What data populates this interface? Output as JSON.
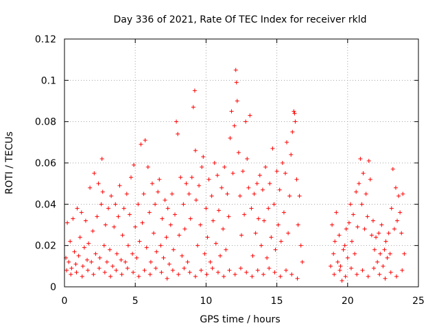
{
  "chart_data": {
    "type": "scatter",
    "title": "Day 336 of 2021, Rate Of TEC Index for receiver rkld",
    "xlabel": "GPS time / hours",
    "ylabel": "ROTI / TECUs",
    "xlim": [
      0,
      25
    ],
    "ylim": [
      0,
      0.12
    ],
    "xticks": [
      0,
      5,
      10,
      15,
      20,
      25
    ],
    "yticks": [
      0,
      0.02,
      0.04,
      0.06,
      0.08,
      0.1,
      0.12
    ],
    "xtick_labels": [
      "0",
      "5",
      "10",
      "15",
      "20",
      "25"
    ],
    "ytick_labels": [
      "0",
      "0.02",
      "0.04",
      "0.06",
      "0.08",
      "0.1",
      "0.12"
    ],
    "grid": true,
    "marker": "plus",
    "color": "#ff0000",
    "data_gap_hours": [
      16.8,
      18.8
    ],
    "series": [
      {
        "points": [
          [
            0.1,
            0.014
          ],
          [
            0.2,
            0.031
          ],
          [
            0.3,
            0.012
          ],
          [
            0.4,
            0.022
          ],
          [
            0.5,
            0.009
          ],
          [
            0.6,
            0.033
          ],
          [
            0.7,
            0.017
          ],
          [
            0.8,
            0.011
          ],
          [
            0.9,
            0.038
          ],
          [
            1.0,
            0.015
          ],
          [
            1.1,
            0.024
          ],
          [
            1.2,
            0.036
          ],
          [
            1.3,
            0.01
          ],
          [
            1.4,
            0.019
          ],
          [
            1.5,
            0.032
          ],
          [
            1.6,
            0.013
          ],
          [
            1.7,
            0.021
          ],
          [
            1.8,
            0.048
          ],
          [
            1.9,
            0.012
          ],
          [
            2.0,
            0.027
          ],
          [
            2.1,
            0.055
          ],
          [
            2.2,
            0.016
          ],
          [
            2.3,
            0.034
          ],
          [
            2.4,
            0.05
          ],
          [
            2.5,
            0.014
          ],
          [
            2.6,
            0.04
          ],
          [
            2.65,
            0.062
          ],
          [
            2.7,
            0.046
          ],
          [
            2.8,
            0.02
          ],
          [
            2.9,
            0.03
          ],
          [
            3.0,
            0.012
          ],
          [
            3.1,
            0.038
          ],
          [
            3.2,
            0.018
          ],
          [
            3.3,
            0.044
          ],
          [
            3.4,
            0.01
          ],
          [
            3.5,
            0.029
          ],
          [
            3.6,
            0.04
          ],
          [
            3.7,
            0.016
          ],
          [
            3.8,
            0.034
          ],
          [
            3.9,
            0.049
          ],
          [
            4.0,
            0.013
          ],
          [
            4.1,
            0.025
          ],
          [
            4.2,
            0.038
          ],
          [
            4.3,
            0.012
          ],
          [
            4.4,
            0.045
          ],
          [
            4.5,
            0.02
          ],
          [
            4.6,
            0.035
          ],
          [
            4.7,
            0.053
          ],
          [
            4.8,
            0.016
          ],
          [
            4.9,
            0.059
          ],
          [
            5.0,
            0.029
          ],
          [
            5.1,
            0.014
          ],
          [
            5.2,
            0.04
          ],
          [
            5.3,
            0.022
          ],
          [
            5.4,
            0.069
          ],
          [
            5.5,
            0.031
          ],
          [
            5.6,
            0.045
          ],
          [
            5.7,
            0.071
          ],
          [
            5.8,
            0.019
          ],
          [
            5.9,
            0.058
          ],
          [
            6.0,
            0.036
          ],
          [
            6.1,
            0.012
          ],
          [
            6.2,
            0.05
          ],
          [
            6.3,
            0.026
          ],
          [
            6.4,
            0.04
          ],
          [
            6.5,
            0.017
          ],
          [
            6.6,
            0.046
          ],
          [
            6.7,
            0.052
          ],
          [
            6.8,
            0.02
          ],
          [
            6.9,
            0.033
          ],
          [
            7.0,
            0.014
          ],
          [
            7.1,
            0.042
          ],
          [
            7.2,
            0.024
          ],
          [
            7.3,
            0.038
          ],
          [
            7.4,
            0.011
          ],
          [
            7.5,
            0.03
          ],
          [
            7.6,
            0.045
          ],
          [
            7.7,
            0.018
          ],
          [
            7.8,
            0.035
          ],
          [
            7.9,
            0.08
          ],
          [
            8.0,
            0.074
          ],
          [
            8.1,
            0.025
          ],
          [
            8.2,
            0.053
          ],
          [
            8.3,
            0.015
          ],
          [
            8.4,
            0.04
          ],
          [
            8.5,
            0.028
          ],
          [
            8.6,
            0.05
          ],
          [
            8.7,
            0.012
          ],
          [
            8.8,
            0.045
          ],
          [
            8.9,
            0.033
          ],
          [
            9.0,
            0.053
          ],
          [
            9.1,
            0.087
          ],
          [
            9.2,
            0.095
          ],
          [
            9.25,
            0.066
          ],
          [
            9.3,
            0.042
          ],
          [
            9.4,
            0.02
          ],
          [
            9.5,
            0.049
          ],
          [
            9.6,
            0.03
          ],
          [
            9.7,
            0.058
          ],
          [
            9.8,
            0.063
          ],
          [
            9.9,
            0.016
          ],
          [
            10.0,
            0.038
          ],
          [
            10.1,
            0.024
          ],
          [
            10.2,
            0.052
          ],
          [
            10.3,
            0.012
          ],
          [
            10.4,
            0.044
          ],
          [
            10.5,
            0.032
          ],
          [
            10.6,
            0.06
          ],
          [
            10.7,
            0.021
          ],
          [
            10.8,
            0.054
          ],
          [
            10.9,
            0.037
          ],
          [
            11.0,
            0.015
          ],
          [
            11.1,
            0.048
          ],
          [
            11.2,
            0.028
          ],
          [
            11.3,
            0.058
          ],
          [
            11.4,
            0.018
          ],
          [
            11.5,
            0.045
          ],
          [
            11.6,
            0.034
          ],
          [
            11.7,
            0.072
          ],
          [
            11.8,
            0.085
          ],
          [
            11.9,
            0.055
          ],
          [
            12.0,
            0.078
          ],
          [
            12.1,
            0.105
          ],
          [
            12.15,
            0.099
          ],
          [
            12.2,
            0.09
          ],
          [
            12.3,
            0.065
          ],
          [
            12.4,
            0.044
          ],
          [
            12.5,
            0.025
          ],
          [
            12.6,
            0.056
          ],
          [
            12.7,
            0.035
          ],
          [
            12.8,
            0.08
          ],
          [
            12.9,
            0.062
          ],
          [
            13.0,
            0.048
          ],
          [
            13.1,
            0.083
          ],
          [
            13.2,
            0.038
          ],
          [
            13.3,
            0.015
          ],
          [
            13.4,
            0.045
          ],
          [
            13.5,
            0.026
          ],
          [
            13.6,
            0.05
          ],
          [
            13.7,
            0.033
          ],
          [
            13.8,
            0.054
          ],
          [
            13.9,
            0.02
          ],
          [
            14.0,
            0.047
          ],
          [
            14.1,
            0.032
          ],
          [
            14.2,
            0.058
          ],
          [
            14.3,
            0.014
          ],
          [
            14.4,
            0.038
          ],
          [
            14.5,
            0.05
          ],
          [
            14.6,
            0.024
          ],
          [
            14.7,
            0.067
          ],
          [
            14.8,
            0.04
          ],
          [
            14.9,
            0.018
          ],
          [
            15.0,
            0.056
          ],
          [
            15.1,
            0.03
          ],
          [
            15.2,
            0.047
          ],
          [
            15.3,
            0.022
          ],
          [
            15.4,
            0.06
          ],
          [
            15.5,
            0.036
          ],
          [
            15.6,
            0.055
          ],
          [
            15.7,
            0.07
          ],
          [
            15.8,
            0.026
          ],
          [
            15.9,
            0.044
          ],
          [
            16.0,
            0.064
          ],
          [
            16.1,
            0.075
          ],
          [
            16.2,
            0.085
          ],
          [
            16.25,
            0.084
          ],
          [
            16.3,
            0.08
          ],
          [
            16.4,
            0.052
          ],
          [
            16.5,
            0.03
          ],
          [
            16.6,
            0.044
          ],
          [
            16.7,
            0.02
          ],
          [
            16.8,
            0.012
          ],
          [
            0.15,
            0.008
          ],
          [
            0.45,
            0.006
          ],
          [
            0.85,
            0.007
          ],
          [
            1.25,
            0.005
          ],
          [
            1.65,
            0.008
          ],
          [
            2.05,
            0.006
          ],
          [
            2.45,
            0.009
          ],
          [
            2.85,
            0.007
          ],
          [
            3.25,
            0.005
          ],
          [
            3.65,
            0.008
          ],
          [
            4.05,
            0.006
          ],
          [
            4.45,
            0.009
          ],
          [
            4.85,
            0.007
          ],
          [
            5.25,
            0.005
          ],
          [
            5.65,
            0.008
          ],
          [
            6.05,
            0.006
          ],
          [
            6.45,
            0.009
          ],
          [
            6.85,
            0.007
          ],
          [
            7.25,
            0.004
          ],
          [
            7.65,
            0.008
          ],
          [
            8.05,
            0.006
          ],
          [
            8.45,
            0.009
          ],
          [
            8.85,
            0.007
          ],
          [
            9.25,
            0.005
          ],
          [
            9.65,
            0.008
          ],
          [
            10.05,
            0.006
          ],
          [
            10.45,
            0.009
          ],
          [
            10.85,
            0.007
          ],
          [
            11.25,
            0.005
          ],
          [
            11.65,
            0.008
          ],
          [
            12.05,
            0.006
          ],
          [
            12.45,
            0.009
          ],
          [
            12.85,
            0.007
          ],
          [
            13.25,
            0.005
          ],
          [
            13.65,
            0.008
          ],
          [
            14.05,
            0.006
          ],
          [
            14.45,
            0.009
          ],
          [
            14.85,
            0.007
          ],
          [
            15.25,
            0.005
          ],
          [
            15.65,
            0.008
          ],
          [
            16.05,
            0.006
          ],
          [
            16.45,
            0.004
          ],
          [
            18.8,
            0.01
          ],
          [
            18.9,
            0.03
          ],
          [
            19.0,
            0.016
          ],
          [
            19.1,
            0.022
          ],
          [
            19.2,
            0.036
          ],
          [
            19.3,
            0.012
          ],
          [
            19.4,
            0.025
          ],
          [
            19.5,
            0.01
          ],
          [
            19.6,
            0.003
          ],
          [
            19.7,
            0.018
          ],
          [
            19.8,
            0.02
          ],
          [
            19.9,
            0.028
          ],
          [
            20.0,
            0.014
          ],
          [
            20.1,
            0.031
          ],
          [
            20.2,
            0.04
          ],
          [
            20.3,
            0.022
          ],
          [
            20.4,
            0.035
          ],
          [
            20.5,
            0.016
          ],
          [
            20.6,
            0.046
          ],
          [
            20.7,
            0.029
          ],
          [
            20.8,
            0.05
          ],
          [
            20.9,
            0.062
          ],
          [
            21.0,
            0.04
          ],
          [
            21.1,
            0.055
          ],
          [
            21.2,
            0.028
          ],
          [
            21.3,
            0.045
          ],
          [
            21.4,
            0.034
          ],
          [
            21.5,
            0.061
          ],
          [
            21.6,
            0.052
          ],
          [
            21.7,
            0.025
          ],
          [
            21.8,
            0.032
          ],
          [
            21.9,
            0.018
          ],
          [
            22.0,
            0.024
          ],
          [
            22.1,
            0.012
          ],
          [
            22.2,
            0.026
          ],
          [
            22.3,
            0.016
          ],
          [
            22.4,
            0.03
          ],
          [
            22.5,
            0.01
          ],
          [
            22.6,
            0.018
          ],
          [
            22.7,
            0.022
          ],
          [
            22.8,
            0.014
          ],
          [
            22.9,
            0.026
          ],
          [
            23.0,
            0.016
          ],
          [
            23.1,
            0.038
          ],
          [
            23.2,
            0.057
          ],
          [
            23.3,
            0.028
          ],
          [
            23.4,
            0.048
          ],
          [
            23.5,
            0.032
          ],
          [
            23.6,
            0.044
          ],
          [
            23.7,
            0.036
          ],
          [
            23.8,
            0.026
          ],
          [
            23.9,
            0.045
          ],
          [
            24.0,
            0.016
          ],
          [
            19.05,
            0.006
          ],
          [
            19.45,
            0.008
          ],
          [
            19.85,
            0.005
          ],
          [
            20.25,
            0.009
          ],
          [
            20.65,
            0.006
          ],
          [
            21.05,
            0.008
          ],
          [
            21.45,
            0.005
          ],
          [
            21.85,
            0.009
          ],
          [
            22.25,
            0.006
          ],
          [
            22.65,
            0.004
          ],
          [
            23.05,
            0.007
          ],
          [
            23.45,
            0.005
          ],
          [
            23.85,
            0.008
          ]
        ]
      }
    ]
  }
}
